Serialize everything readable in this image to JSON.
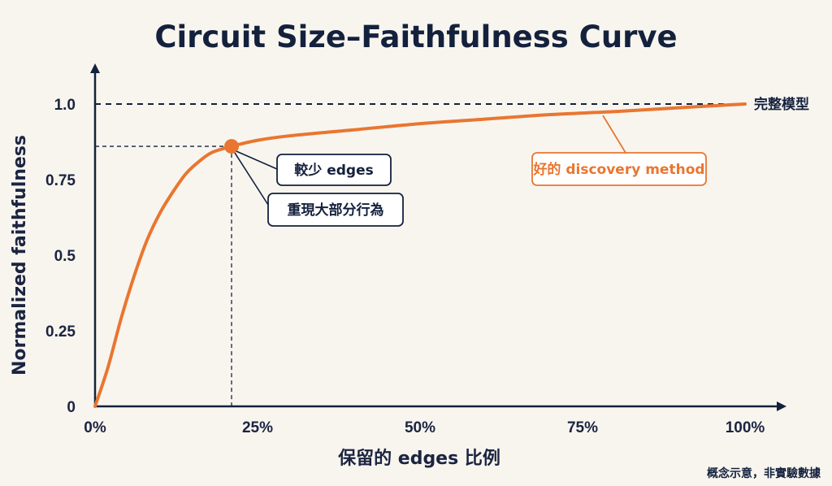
{
  "chart_data": {
    "type": "line",
    "title": "Circuit Size–Faithfulness Curve",
    "xlabel": "保留的 edges 比例",
    "ylabel": "Normalized faithfulness",
    "xlim": [
      0,
      100
    ],
    "ylim": [
      0,
      1.0
    ],
    "x_ticks": [
      "0%",
      "25%",
      "50%",
      "75%",
      "100%"
    ],
    "y_ticks": [
      "0",
      "0.25",
      "0.5",
      "0.75",
      "1.0"
    ],
    "series": [
      {
        "name": "好的 discovery method",
        "color": "#e97630",
        "x": [
          0,
          2,
          4,
          6,
          8,
          10,
          12,
          14,
          16,
          18,
          21,
          25,
          30,
          40,
          50,
          60,
          70,
          80,
          90,
          100
        ],
        "y": [
          0,
          0.13,
          0.29,
          0.43,
          0.55,
          0.64,
          0.71,
          0.77,
          0.81,
          0.84,
          0.86,
          0.88,
          0.895,
          0.915,
          0.935,
          0.95,
          0.965,
          0.975,
          0.988,
          1.0
        ]
      }
    ],
    "reference_line": {
      "y": 1.0,
      "label": "完整模型",
      "style": "dashed"
    },
    "highlight_point": {
      "x": 21,
      "y": 0.86,
      "color": "#e97630"
    },
    "annotations": [
      {
        "text": "較少 edges"
      },
      {
        "text": "重現大部分行為"
      }
    ],
    "grid": false,
    "footnote": "概念示意，非實驗數據"
  }
}
